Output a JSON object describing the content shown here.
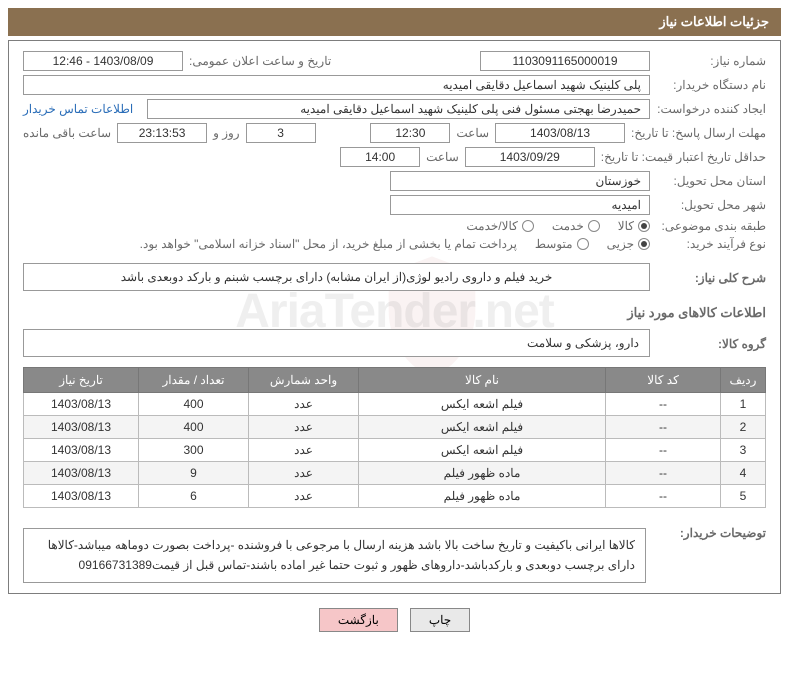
{
  "header_title": "جزئیات اطلاعات نیاز",
  "need_number_label": "شماره نیاز:",
  "need_number": "1103091165000019",
  "announce_date_label": "تاریخ و ساعت اعلان عمومی:",
  "announce_date": "1403/08/09 - 12:46",
  "buyer_org_label": "نام دستگاه خریدار:",
  "buyer_org": "پلی کلینیک شهید اسماعیل دقایقی امیدیه",
  "requester_label": "ایجاد کننده درخواست:",
  "requester": "حمیدرضا بهجتی مسئول فنی پلی کلینیک شهید اسماعیل دقایقی امیدیه",
  "buyer_contact_link": "اطلاعات تماس خریدار",
  "deadline_reply_label": "مهلت ارسال پاسخ: تا تاریخ:",
  "deadline_reply_date": "1403/08/13",
  "time_word": "ساعت",
  "deadline_reply_time": "12:30",
  "days_word": "روز و",
  "remaining_days": "3",
  "remaining_time": "23:13:53",
  "remaining_label": "ساعت باقی مانده",
  "price_validity_label": "حداقل تاریخ اعتبار قیمت: تا تاریخ:",
  "price_validity_date": "1403/09/29",
  "price_validity_time": "14:00",
  "delivery_province_label": "استان محل تحویل:",
  "delivery_province": "خوزستان",
  "delivery_city_label": "شهر محل تحویل:",
  "delivery_city": "امیدیه",
  "category_label": "طبقه بندی موضوعی:",
  "category_options": {
    "goods": "کالا",
    "service": "خدمت",
    "goods_service": "کالا/خدمت"
  },
  "buy_type_label": "نوع فرآیند خرید:",
  "buy_type_options": {
    "partial": "جزیی",
    "mid": "متوسط"
  },
  "payment_note": "پرداخت تمام یا بخشی از مبلغ خرید، از محل \"اسناد خزانه اسلامی\" خواهد بود.",
  "overall_label": "شرح کلی نیاز:",
  "overall_desc": "خرید فیلم و داروی رادیو لوژی(از ایران مشابه) دارای برچسب شبنم و بارکد دوبعدی باشد",
  "goods_info_title": "اطلاعات کالاهای مورد نیاز",
  "goods_group_label": "گروه کالا:",
  "goods_group": "دارو، پزشکی و سلامت",
  "table": {
    "headers": {
      "row": "ردیف",
      "code": "کد کالا",
      "name": "نام کالا",
      "unit": "واحد شمارش",
      "qty": "تعداد / مقدار",
      "need_date": "تاریخ نیاز"
    },
    "col_widths": {
      "row": "45px",
      "code": "115px",
      "name": "auto",
      "unit": "110px",
      "qty": "110px",
      "need_date": "115px"
    },
    "header_bg": "#898989",
    "header_fg": "#ffffff",
    "row_alt_bg": "#f4f4f4",
    "rows": [
      {
        "row": "1",
        "code": "--",
        "name": "فیلم اشعه ایکس",
        "unit": "عدد",
        "qty": "400",
        "need_date": "1403/08/13"
      },
      {
        "row": "2",
        "code": "--",
        "name": "فیلم اشعه ایکس",
        "unit": "عدد",
        "qty": "400",
        "need_date": "1403/08/13"
      },
      {
        "row": "3",
        "code": "--",
        "name": "فیلم اشعه ایکس",
        "unit": "عدد",
        "qty": "300",
        "need_date": "1403/08/13"
      },
      {
        "row": "4",
        "code": "--",
        "name": "ماده ظهور فیلم",
        "unit": "عدد",
        "qty": "9",
        "need_date": "1403/08/13"
      },
      {
        "row": "5",
        "code": "--",
        "name": "ماده ظهور فیلم",
        "unit": "عدد",
        "qty": "6",
        "need_date": "1403/08/13"
      }
    ]
  },
  "buyer_notes_label": "توضیحات خریدار:",
  "buyer_notes": "کالاها ایرانی باکیفیت و تاریخ ساخت بالا باشد هزینه ارسال با مرجوعی با فروشنده -پرداخت بصورت دوماهه میباشد-کالاها دارای برچسب دوبعدی و بارکدباشد-داروهای ظهور و ثبوت حتما غیر اماده باشند-تماس قبل از قیمت09166731389",
  "buttons": {
    "print": "چاپ",
    "back": "بازگشت"
  },
  "colors": {
    "header_band_bg": "#8a7050",
    "header_band_fg": "#ffffff",
    "panel_border": "#7d7d7d",
    "label_fg": "#6a6a6a",
    "field_border": "#999999",
    "link_fg": "#2a6db8",
    "btn_back_bg": "#f6c6c8",
    "btn_print_bg": "#e9e9e9"
  },
  "watermark_text": "AriaTender.net"
}
